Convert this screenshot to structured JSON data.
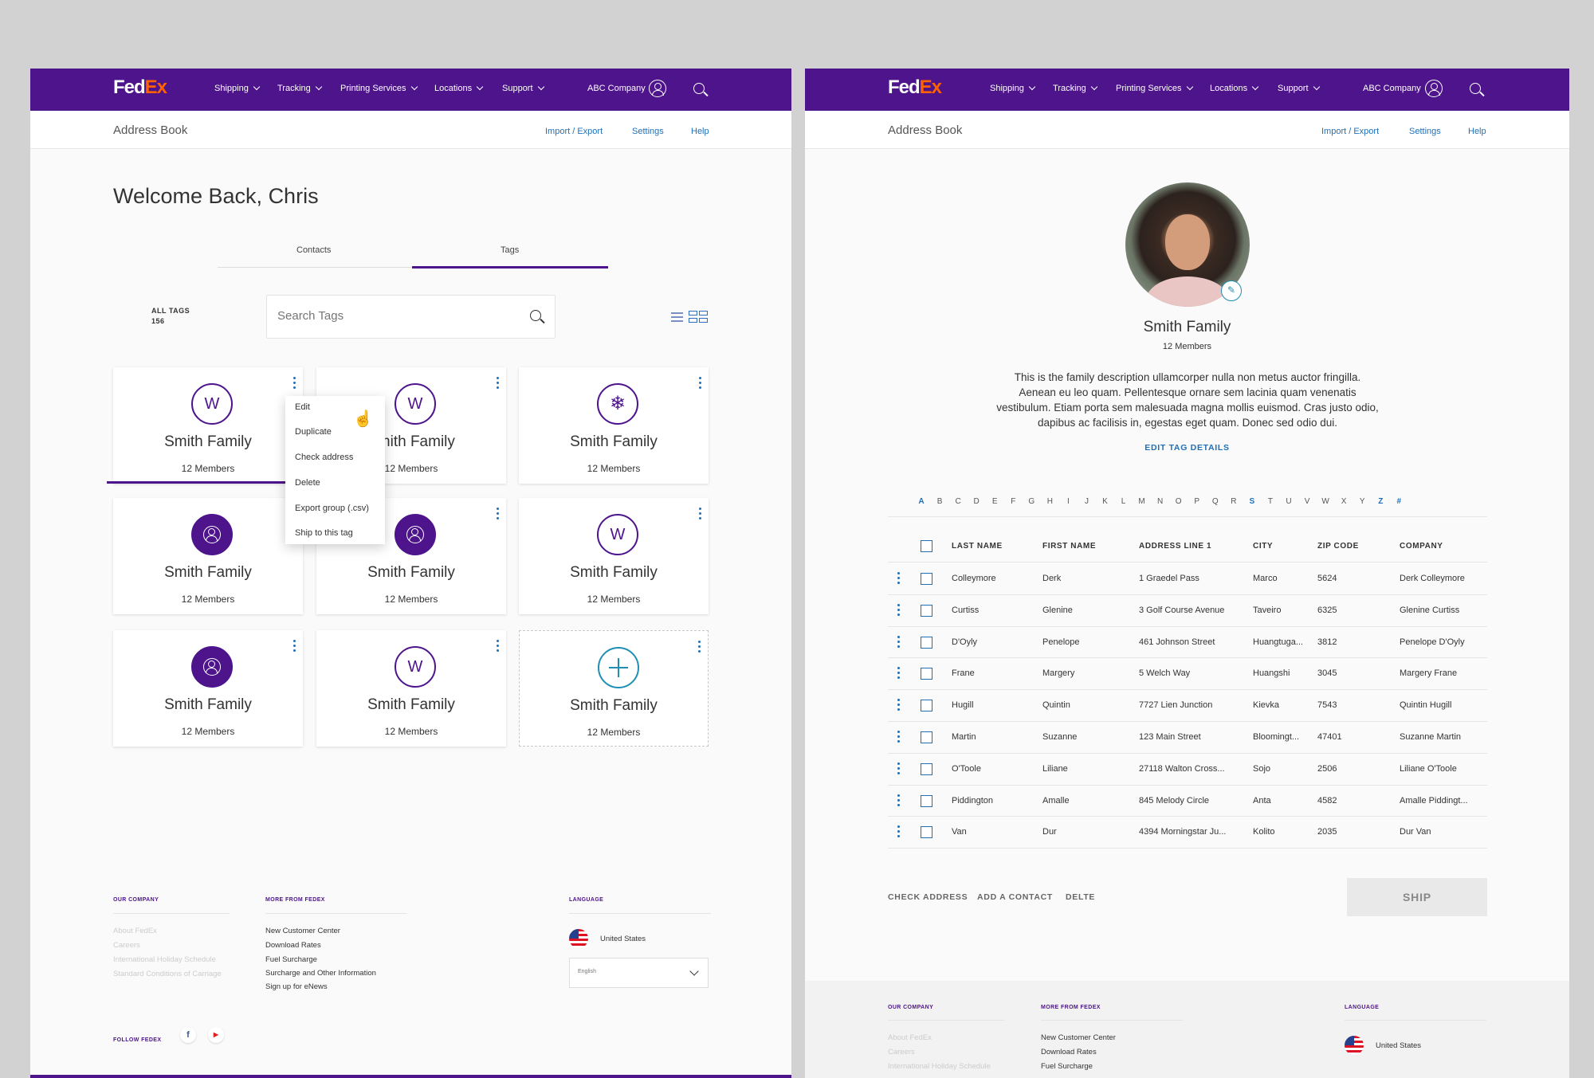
{
  "nav": {
    "logo_fed": "Fed",
    "logo_ex": "Ex",
    "items": [
      "Shipping",
      "Tracking",
      "Printing Services",
      "Locations",
      "Support"
    ],
    "account": "ABC Company"
  },
  "subnav": {
    "title": "Address Book",
    "import_export": "Import / Export",
    "settings": "Settings",
    "help": "Help"
  },
  "left": {
    "welcome": "Welcome Back, Chris",
    "tabs": [
      "Contacts",
      "Tags"
    ],
    "active_tab": "Tags",
    "all_tags_label": "ALL TAGS",
    "all_tags_count": "156",
    "search_placeholder": "Search Tags",
    "cards": [
      {
        "icon": "W",
        "style": "outline",
        "name": "Smith Family",
        "members": "12 Members",
        "active": true
      },
      {
        "icon": "W",
        "style": "outline",
        "name": "Smith Family",
        "members": "12 Members",
        "active": false
      },
      {
        "icon": "snowflake",
        "style": "outline",
        "name": "Smith Family",
        "members": "12 Members",
        "active": false
      },
      {
        "icon": "person",
        "style": "filled",
        "name": "Smith Family",
        "members": "12 Members",
        "active": false
      },
      {
        "icon": "person",
        "style": "filled",
        "name": "Smith Family",
        "members": "12 Members",
        "active": false
      },
      {
        "icon": "W",
        "style": "outline",
        "name": "Smith Family",
        "members": "12 Members",
        "active": false
      },
      {
        "icon": "person",
        "style": "filled",
        "name": "Smith Family",
        "members": "12 Members",
        "active": false
      },
      {
        "icon": "W",
        "style": "outline",
        "name": "Smith Family",
        "members": "12 Members",
        "active": false
      },
      {
        "icon": "plus",
        "style": "dashed",
        "name": "Smith Family",
        "members": "12 Members",
        "active": false
      }
    ],
    "context_menu": [
      "Edit",
      "Duplicate",
      "Check address",
      "Delete",
      "Export group (.csv)",
      "Ship to this tag"
    ]
  },
  "footer": {
    "our_company": "OUR COMPANY",
    "our_company_links": [
      "About FedEx",
      "Careers",
      "International Holiday Schedule",
      "Standard Conditions of Carriage"
    ],
    "more_from": "MORE FROM FEDEX",
    "more_links": [
      "New Customer Center",
      "Download Rates",
      "Fuel Surcharge",
      "Surcharge and Other Information",
      "Sign up for eNews"
    ],
    "language": "LANGUAGE",
    "country": "United States",
    "language_value": "English",
    "follow": "FOLLOW FEDEX"
  },
  "right": {
    "profile_name": "Smith Family",
    "profile_members": "12 Members",
    "description": "This is the family description ullamcorper nulla non metus auctor fringilla. Aenean eu leo quam. Pellentesque ornare sem lacinia quam venenatis vestibulum. Etiam porta sem malesuada magna mollis euismod. Cras justo odio, dapibus ac facilisis in, egestas eget quam. Donec sed odio dui.",
    "edit_tag": "EDIT TAG DETAILS",
    "alphabet": [
      "A",
      "B",
      "C",
      "D",
      "E",
      "F",
      "G",
      "H",
      "I",
      "J",
      "K",
      "L",
      "M",
      "N",
      "O",
      "P",
      "Q",
      "R",
      "S",
      "T",
      "U",
      "V",
      "W",
      "X",
      "Y",
      "Z",
      "#"
    ],
    "alphabet_active": [
      "A",
      "S",
      "Z",
      "#"
    ],
    "columns": [
      "LAST NAME",
      "FIRST NAME",
      "ADDRESS LINE 1",
      "CITY",
      "ZIP CODE",
      "COMPANY"
    ],
    "rows": [
      [
        "Colleymore",
        "Derk",
        "1 Graedel Pass",
        "Marco",
        "5624",
        "Derk Colleymore"
      ],
      [
        "Curtiss",
        "Glenine",
        "3 Golf Course Avenue",
        "Taveiro",
        "6325",
        "Glenine Curtiss"
      ],
      [
        "D'Oyly",
        "Penelope",
        "461 Johnson Street",
        "Huangtuga...",
        "3812",
        "Penelope D'Oyly"
      ],
      [
        "Frane",
        "Margery",
        "5 Welch Way",
        "Huangshi",
        "3045",
        "Margery Frane"
      ],
      [
        "Hugill",
        "Quintin",
        "7727 Lien Junction",
        "Kievka",
        "7543",
        "Quintin Hugill"
      ],
      [
        "Martin",
        "Suzanne",
        "123 Main Street",
        "Bloomingt...",
        "47401",
        "Suzanne Martin"
      ],
      [
        "O'Toole",
        "Liliane",
        "27118 Walton Cross...",
        "Sojo",
        "2506",
        "Liliane O'Toole"
      ],
      [
        "Piddington",
        "Amalle",
        "845 Melody Circle",
        "Anta",
        "4582",
        "Amalle Piddingt..."
      ],
      [
        "Van",
        "Dur",
        "4394 Morningstar Ju...",
        "Kolito",
        "2035",
        "Dur Van"
      ]
    ],
    "actions": [
      "CHECK ADDRESS",
      "ADD A CONTACT",
      "DELTE"
    ],
    "ship": "SHIP"
  }
}
